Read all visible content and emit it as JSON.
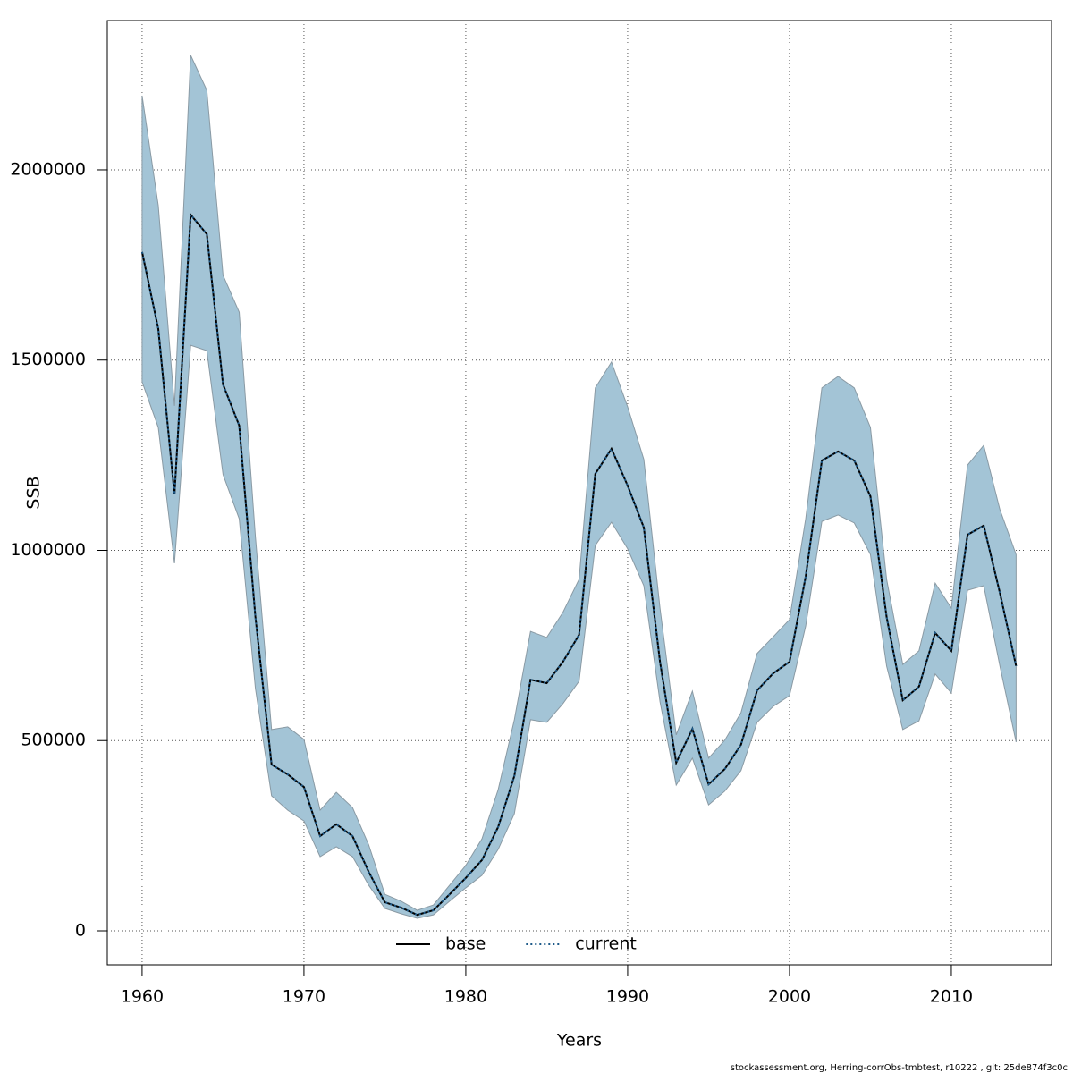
{
  "chart_data": {
    "type": "line",
    "x_label": "Years",
    "y_label": "SSB",
    "footnote": "stockassessment.org, Herring-corrObs-tmbtest, r10222 , git: 25de874f3c0c",
    "x": [
      1960,
      1961,
      1962,
      1963,
      1964,
      1965,
      1966,
      1967,
      1968,
      1969,
      1970,
      1971,
      1972,
      1973,
      1974,
      1975,
      1976,
      1977,
      1978,
      1979,
      1980,
      1981,
      1982,
      1983,
      1984,
      1985,
      1986,
      1987,
      1988,
      1989,
      1990,
      1991,
      1992,
      1993,
      1994,
      1995,
      1996,
      1997,
      1998,
      1999,
      2000,
      2001,
      2002,
      2003,
      2004,
      2005,
      2006,
      2007,
      2008,
      2009,
      2010,
      2011,
      2012,
      2013,
      2014
    ],
    "series": [
      {
        "name": "base",
        "color": "#000000",
        "linestyle": "solid",
        "values": [
          1784000,
          1582000,
          1147000,
          1882000,
          1831000,
          1436000,
          1328000,
          825000,
          437000,
          411000,
          378000,
          249000,
          280000,
          249000,
          155000,
          75000,
          61000,
          42000,
          54000,
          96000,
          139000,
          186000,
          273000,
          407000,
          660000,
          651000,
          707000,
          778000,
          1201000,
          1267000,
          1170000,
          1060000,
          707000,
          442000,
          531000,
          385000,
          425000,
          489000,
          632000,
          677000,
          707000,
          931000,
          1236000,
          1260000,
          1236000,
          1142000,
          825000,
          606000,
          642000,
          783000,
          736000,
          1041000,
          1065000,
          888000,
          696000
        ]
      },
      {
        "name": "current",
        "color": "#1f5b8a",
        "linestyle": "dotted",
        "values": [
          1784000,
          1582000,
          1147000,
          1882000,
          1831000,
          1436000,
          1328000,
          825000,
          437000,
          411000,
          378000,
          249000,
          280000,
          249000,
          155000,
          75000,
          61000,
          42000,
          54000,
          96000,
          139000,
          186000,
          273000,
          407000,
          660000,
          651000,
          707000,
          778000,
          1201000,
          1267000,
          1170000,
          1060000,
          707000,
          442000,
          531000,
          385000,
          425000,
          489000,
          632000,
          677000,
          707000,
          931000,
          1236000,
          1260000,
          1236000,
          1142000,
          825000,
          606000,
          642000,
          783000,
          736000,
          1041000,
          1065000,
          888000,
          696000
        ]
      }
    ],
    "band": {
      "color": "#a3c4d6",
      "upper": [
        2195000,
        1906000,
        1380000,
        2301000,
        2209000,
        1723000,
        1626000,
        1036000,
        529000,
        536000,
        503000,
        317000,
        364000,
        324000,
        226000,
        96000,
        78000,
        54000,
        68000,
        120000,
        172000,
        242000,
        371000,
        555000,
        787000,
        771000,
        837000,
        924000,
        1427000,
        1495000,
        1377000,
        1239000,
        848000,
        515000,
        630000,
        454000,
        501000,
        573000,
        729000,
        773000,
        818000,
        1083000,
        1427000,
        1457000,
        1427000,
        1323000,
        924000,
        700000,
        736000,
        914000,
        848000,
        1224000,
        1276000,
        1107000,
        989000
      ],
      "lower": [
        1443000,
        1323000,
        966000,
        1539000,
        1525000,
        1199000,
        1083000,
        637000,
        355000,
        317000,
        289000,
        195000,
        221000,
        195000,
        120000,
        59000,
        45000,
        33000,
        42000,
        78000,
        113000,
        146000,
        214000,
        308000,
        555000,
        548000,
        597000,
        656000,
        1013000,
        1074000,
        1004000,
        907000,
        602000,
        383000,
        454000,
        331000,
        367000,
        421000,
        548000,
        590000,
        618000,
        801000,
        1076000,
        1093000,
        1072000,
        989000,
        696000,
        529000,
        552000,
        675000,
        625000,
        895000,
        907000,
        696000,
        496000
      ]
    },
    "xlim": [
      1957.85,
      2016.19
    ],
    "ylim": [
      -89300,
      2392400
    ],
    "xticks": [
      1960,
      1970,
      1980,
      1990,
      2000,
      2010
    ],
    "yticks": [
      0,
      500000,
      1000000,
      1500000,
      2000000
    ],
    "grid": true,
    "legend": "bottom"
  }
}
